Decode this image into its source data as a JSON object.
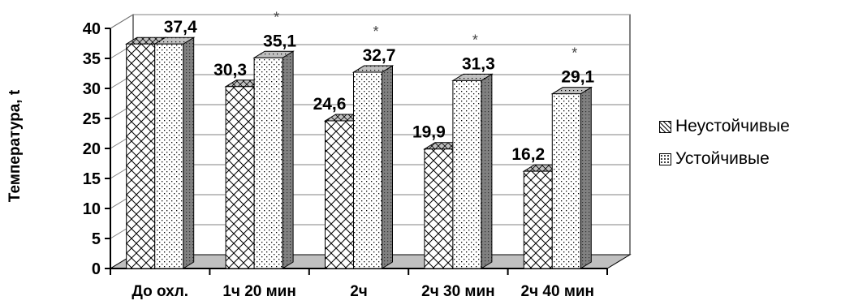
{
  "chart_data": {
    "type": "bar",
    "title": "",
    "xlabel": "",
    "ylabel": "Температура, t",
    "ylim": [
      0,
      40
    ],
    "yticks": [
      0,
      5,
      10,
      15,
      20,
      25,
      30,
      35,
      40
    ],
    "grid": true,
    "legend_position": "right",
    "categories": [
      "До охл.",
      "1ч 20 мин",
      "2ч",
      "2ч 30 мин",
      "2ч 40 мин"
    ],
    "series": [
      {
        "name": "Неустойчивые",
        "values": [
          37.4,
          30.3,
          24.6,
          19.9,
          16.2
        ],
        "labels": [
          "",
          "30,3",
          "24,6",
          "19,9",
          "16,2"
        ]
      },
      {
        "name": "Устойчивые",
        "values": [
          37.4,
          35.1,
          32.7,
          31.3,
          29.1
        ],
        "labels": [
          "37,4",
          "35,1",
          "32,7",
          "31,3",
          "29,1"
        ]
      }
    ],
    "annotations": [
      "*",
      "*",
      "*",
      "*"
    ],
    "colors": {
      "floor": "#c0c0c0",
      "bar_face": "#ffffff",
      "bar_side": "#808080",
      "bar_top": "#c0c0c0",
      "pattern": "#000000"
    }
  }
}
